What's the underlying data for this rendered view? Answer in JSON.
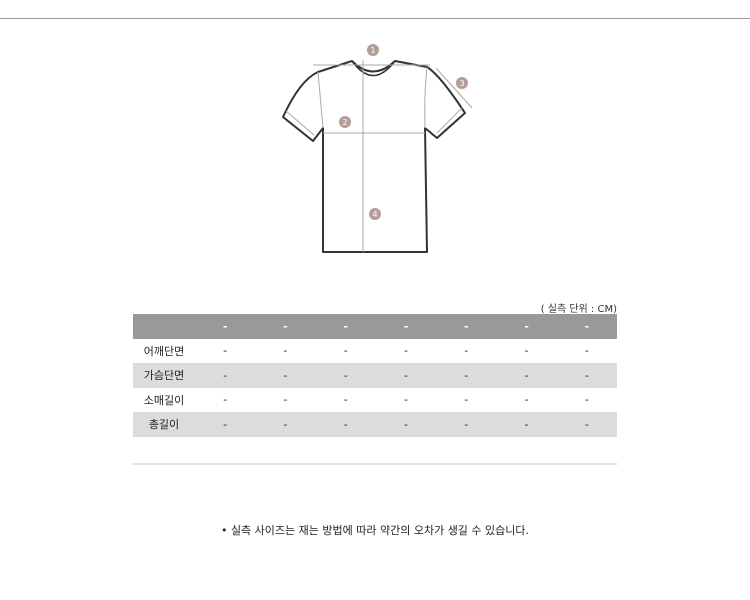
{
  "diagram": {
    "markers": [
      "1",
      "2",
      "3",
      "4"
    ],
    "marker_color": "#b39d97"
  },
  "table": {
    "unit_note": "( 실측 단위 : CM)",
    "header": [
      "",
      "-",
      "-",
      "-",
      "-",
      "-",
      "-",
      "-"
    ],
    "rows": [
      {
        "label": "어깨단면",
        "values": [
          "-",
          "-",
          "-",
          "-",
          "-",
          "-",
          "-"
        ]
      },
      {
        "label": "가슴단면",
        "values": [
          "-",
          "-",
          "-",
          "-",
          "-",
          "-",
          "-"
        ]
      },
      {
        "label": "소매길이",
        "values": [
          "-",
          "-",
          "-",
          "-",
          "-",
          "-",
          "-"
        ]
      },
      {
        "label": "총길이",
        "values": [
          "-",
          "-",
          "-",
          "-",
          "-",
          "-",
          "-"
        ]
      }
    ]
  },
  "note": "• 실측 사이즈는 재는 방법에 따라 약간의 오차가 생길 수 있습니다."
}
